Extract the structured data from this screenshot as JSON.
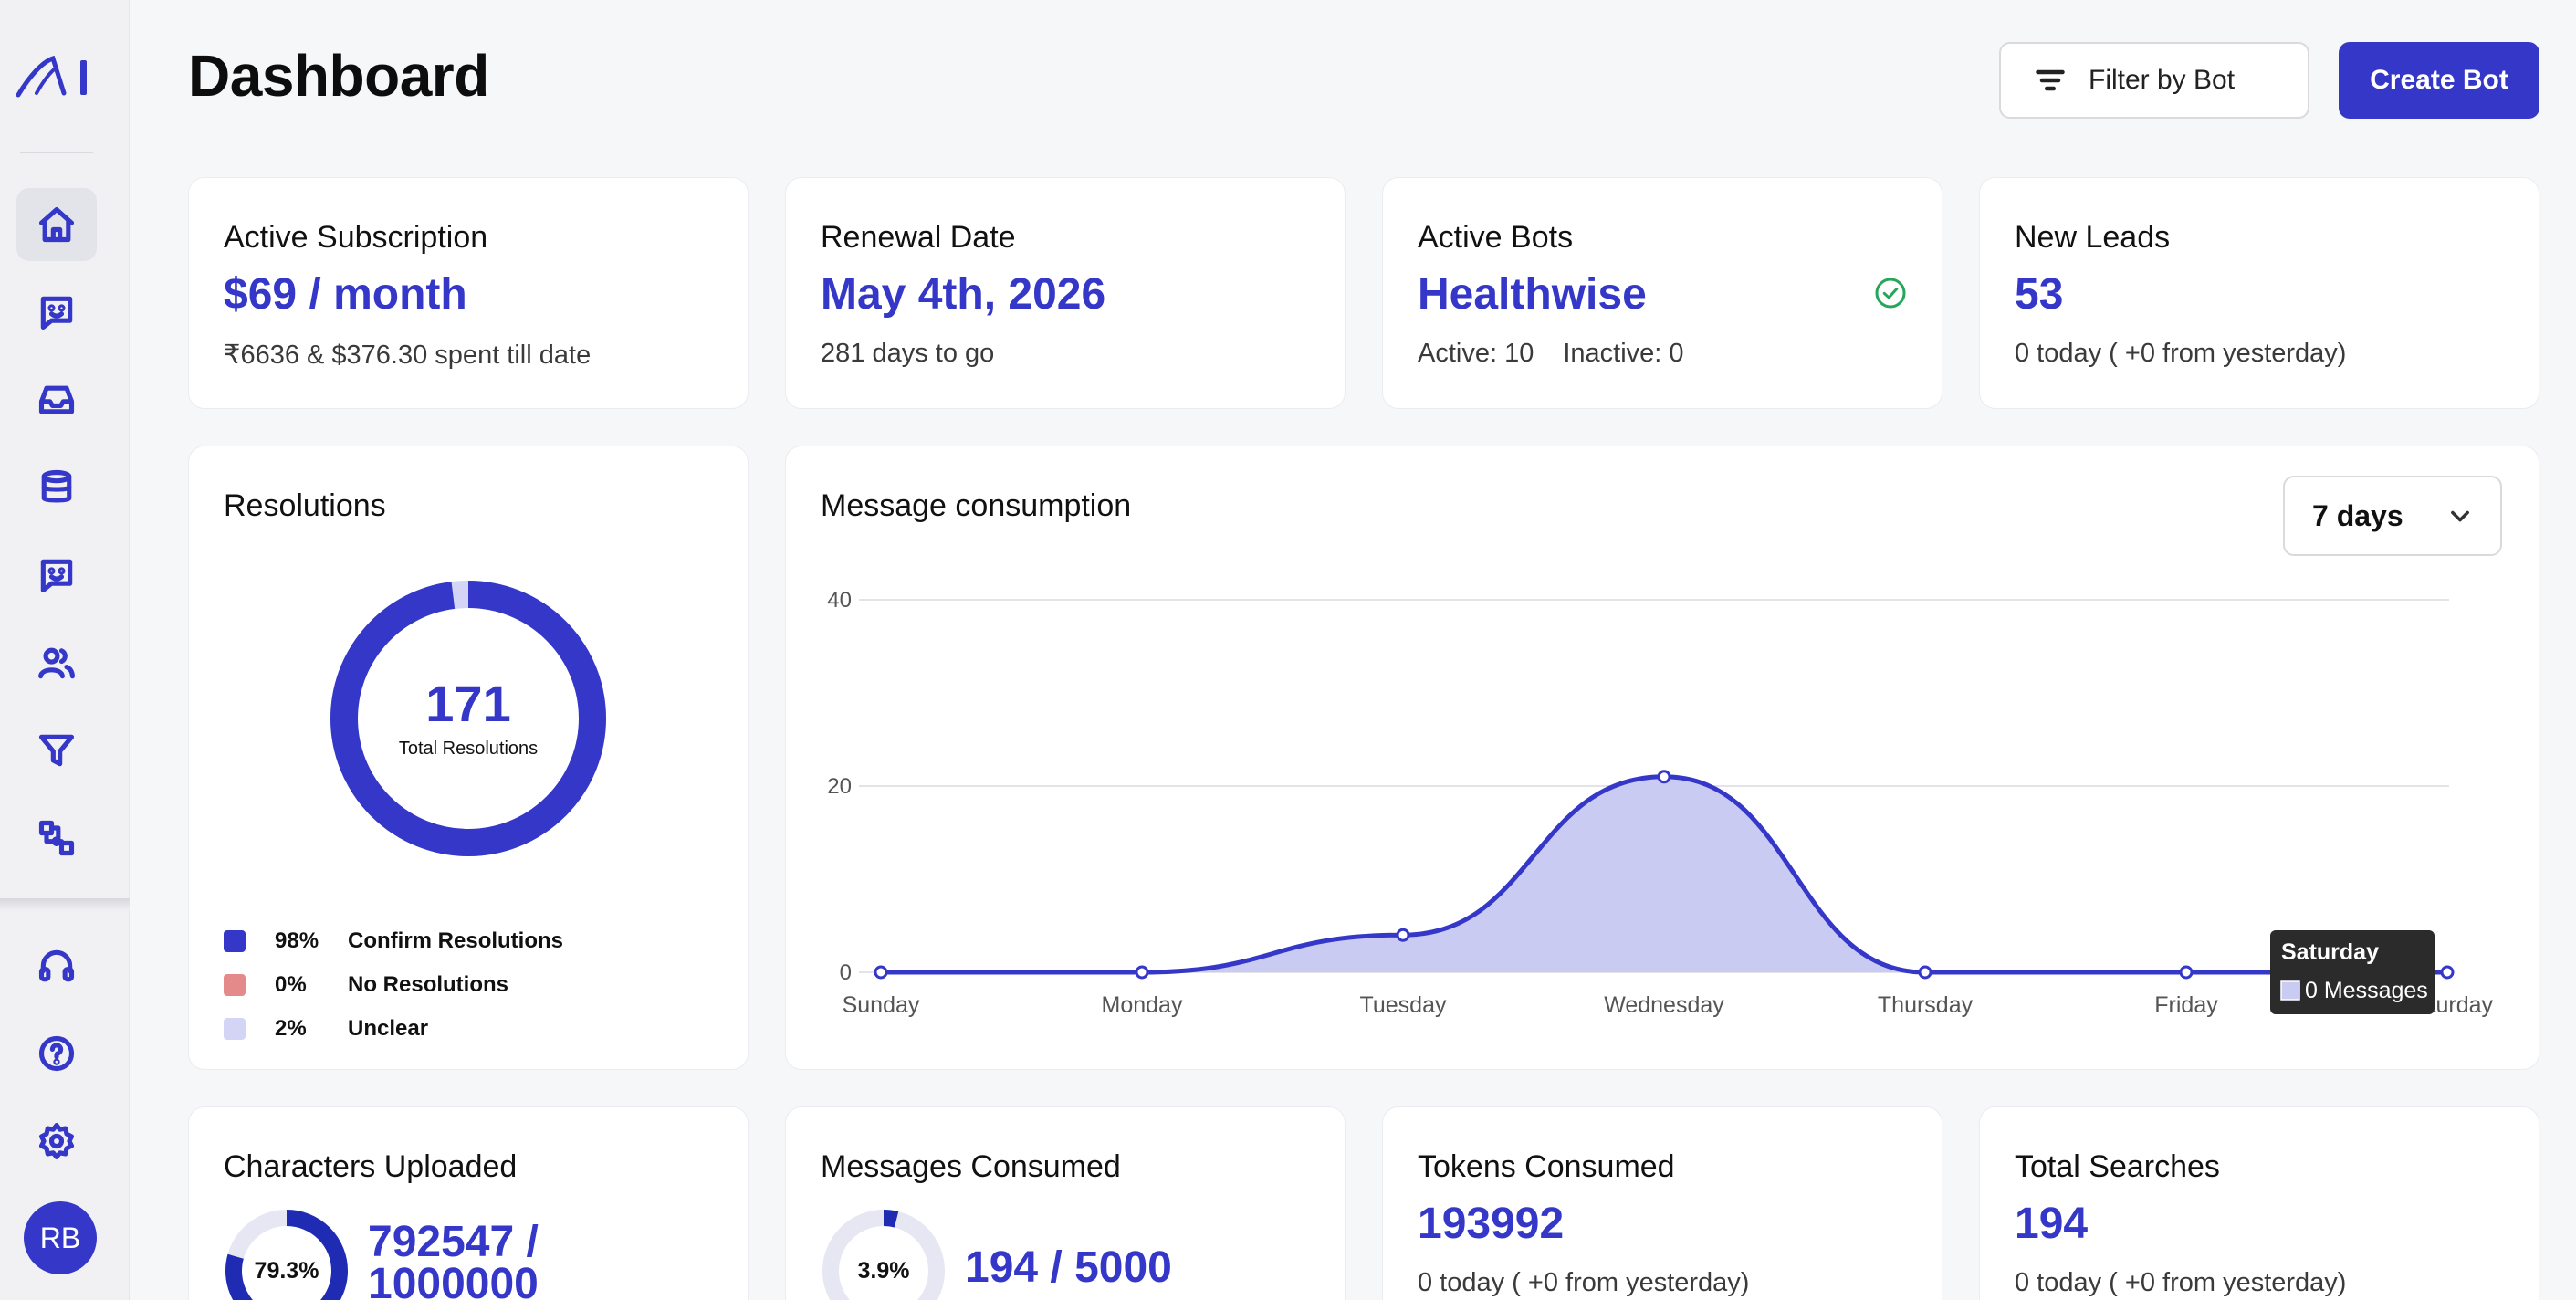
{
  "header": {
    "title": "Dashboard",
    "filter_label": "Filter by Bot",
    "create_label": "Create Bot"
  },
  "user": {
    "initials": "RB"
  },
  "stats": {
    "subscription": {
      "label": "Active Subscription",
      "value": "$69 / month",
      "sub": "₹6636 & $376.30 spent till date"
    },
    "renewal": {
      "label": "Renewal Date",
      "value": "May 4th, 2026",
      "sub": "281 days to go"
    },
    "bots": {
      "label": "Active Bots",
      "value": "Healthwise",
      "active": "Active: 10",
      "inactive": "Inactive: 0"
    },
    "leads": {
      "label": "New Leads",
      "value": "53",
      "sub": "0 today ( +0 from yesterday)"
    }
  },
  "resolutions": {
    "title": "Resolutions",
    "total": "171",
    "total_caption": "Total Resolutions",
    "legend": [
      {
        "pct": "98%",
        "label": "Confirm Resolutions",
        "color": "#3437c8"
      },
      {
        "pct": "0%",
        "label": "No Resolutions",
        "color": "#e58a8a"
      },
      {
        "pct": "2%",
        "label": "Unclear",
        "color": "#d4d5f6"
      }
    ]
  },
  "messages_chart": {
    "title": "Message consumption",
    "range": "7 days",
    "tooltip": {
      "title": "Saturday",
      "text": "0 Messages"
    }
  },
  "chart_data": {
    "type": "area",
    "categories": [
      "Sunday",
      "Monday",
      "Tuesday",
      "Wednesday",
      "Thursday",
      "Friday",
      "Saturday"
    ],
    "values": [
      0,
      0,
      4,
      21,
      0,
      0,
      0
    ],
    "yticks": [
      "0",
      "20",
      "40"
    ],
    "ylim": [
      0,
      40
    ],
    "grid": true,
    "colors": {
      "line": "#3437c8",
      "fill": "#c9cbf2"
    }
  },
  "bottom": {
    "characters": {
      "label": "Characters Uploaded",
      "pct": "79.3%",
      "fraction": 0.793,
      "line1": "792547 /",
      "line2": "1000000"
    },
    "messages": {
      "label": "Messages Consumed",
      "pct": "3.9%",
      "fraction": 0.039,
      "value": "194 / 5000"
    },
    "tokens": {
      "label": "Tokens Consumed",
      "value": "193992",
      "sub": "0 today ( +0 from yesterday)"
    },
    "searches": {
      "label": "Total Searches",
      "value": "194",
      "sub": "0 today ( +0 from yesterday)"
    }
  },
  "icons": [
    "home-icon",
    "chat-bot-icon",
    "inbox-icon",
    "database-icon",
    "chat-bot-icon",
    "users-icon",
    "filter-icon",
    "integrations-icon",
    "headset-icon",
    "help-icon",
    "settings-icon"
  ]
}
